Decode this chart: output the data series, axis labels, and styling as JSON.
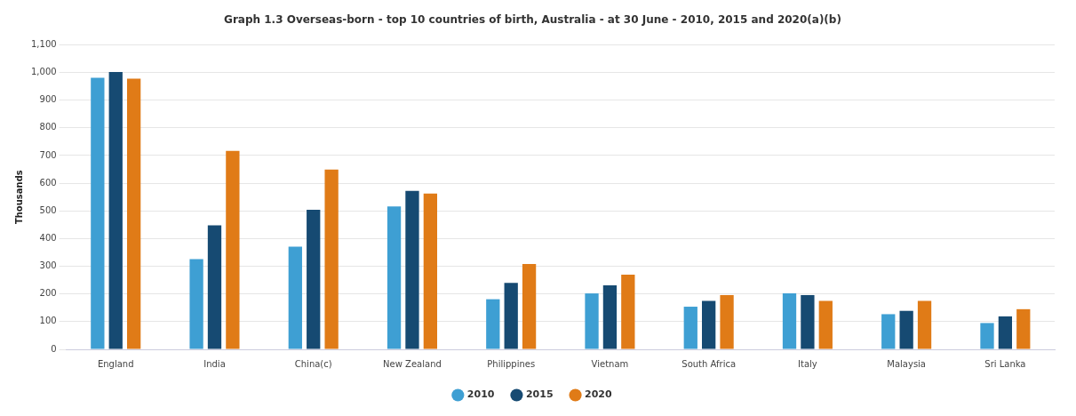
{
  "chart_data": {
    "type": "bar",
    "title": "Graph 1.3 Overseas-born - top 10 countries of birth, Australia - at 30 June - 2010, 2015 and 2020(a)(b)",
    "ylabel": "Thousands",
    "categories": [
      "England",
      "India",
      "China(c)",
      "New Zealand",
      "Philippines",
      "Vietnam",
      "South Africa",
      "Italy",
      "Malaysia",
      "Sri Lanka"
    ],
    "series": [
      {
        "name": "2010",
        "color": "#3e9fd3",
        "values": [
          981,
          326,
          371,
          516,
          181,
          202,
          154,
          202,
          127,
          95
        ]
      },
      {
        "name": "2015",
        "color": "#164a72",
        "values": [
          1002,
          448,
          504,
          572,
          240,
          231,
          175,
          196,
          139,
          119
        ]
      },
      {
        "name": "2020",
        "color": "#e07b17",
        "values": [
          978,
          717,
          649,
          563,
          308,
          270,
          196,
          175,
          175,
          145
        ]
      }
    ],
    "ylim": [
      0,
      1100
    ],
    "yticks": [
      0,
      {
        "value": 100,
        "label": "100"
      },
      200,
      300,
      400,
      500,
      600,
      700,
      800,
      900,
      {
        "value": 1000,
        "label": "1,000"
      },
      {
        "value": 1100,
        "label": "1,100"
      }
    ],
    "grid": "y",
    "legend": "bottom",
    "marker": "circle"
  }
}
